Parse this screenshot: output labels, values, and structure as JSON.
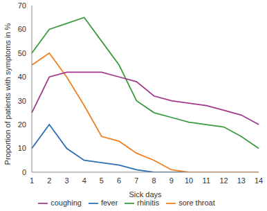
{
  "chart_data": {
    "type": "line",
    "x_label": "Sick days",
    "y_label": "Proportion of patients with symptoms in %",
    "categories": [
      1,
      2,
      3,
      4,
      5,
      6,
      7,
      8,
      9,
      10,
      11,
      12,
      13,
      14
    ],
    "series": [
      {
        "name": "fever",
        "color": "#2a6db3",
        "values": [
          10,
          20,
          10,
          5,
          4,
          3,
          1,
          0,
          0,
          0,
          0,
          0,
          0,
          0
        ]
      },
      {
        "name": "sore throat",
        "color": "#f07f22",
        "values": [
          45,
          50,
          40,
          28,
          15,
          13,
          8,
          5,
          1,
          0,
          0,
          0,
          0,
          0
        ]
      },
      {
        "name": "rhinitis",
        "color": "#3a9b3e",
        "values": [
          50,
          60,
          62.5,
          65,
          55,
          45,
          30,
          25,
          23,
          21,
          20,
          19,
          15,
          10
        ]
      },
      {
        "name": "coughing",
        "color": "#a3378c",
        "values": [
          25,
          40,
          42,
          42,
          42,
          40,
          38,
          32,
          30,
          29,
          28,
          26,
          24,
          20
        ]
      }
    ],
    "ylim": [
      0,
      70
    ],
    "yticks": [
      0,
      10,
      20,
      30,
      40,
      50,
      60,
      70
    ],
    "grid": false,
    "legend": "bottom"
  }
}
